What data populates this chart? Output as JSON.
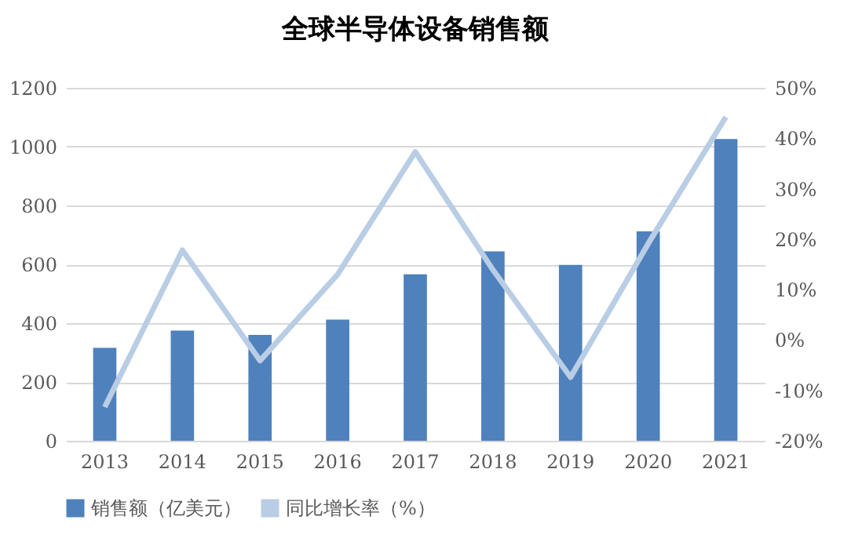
{
  "chart_data": {
    "type": "bar",
    "title": "全球半导体设备销售额",
    "categories": [
      "2013",
      "2014",
      "2015",
      "2016",
      "2017",
      "2018",
      "2019",
      "2020",
      "2021"
    ],
    "series": [
      {
        "name": "销售额（亿美元）",
        "color": "#4f81bd",
        "values": [
          316,
          375,
          360,
          412,
          566,
          644,
          598,
          712,
          1026
        ]
      },
      {
        "name": "同比增长率（%）",
        "type": "line",
        "axis": "y2",
        "color": "#b9cde5",
        "values": [
          -13.3,
          17.8,
          -4.1,
          13.0,
          37.3,
          13.9,
          -7.4,
          19.1,
          44.2
        ]
      }
    ],
    "ylim": [
      0,
      1200
    ],
    "yticks": [
      0,
      200,
      400,
      600,
      800,
      1000,
      1200
    ],
    "y2lim": [
      -20,
      50
    ],
    "y2ticks": [
      {
        "value": -20,
        "label": "-20%"
      },
      {
        "value": -10,
        "label": "-10%"
      },
      {
        "value": 0,
        "label": "0%"
      },
      {
        "value": 10,
        "label": "10%"
      },
      {
        "value": 20,
        "label": "20%"
      },
      {
        "value": 30,
        "label": "30%"
      },
      {
        "value": 40,
        "label": "40%"
      },
      {
        "value": 50,
        "label": "50%"
      }
    ],
    "grid": "y",
    "legend": "bottom",
    "marker": "none"
  }
}
